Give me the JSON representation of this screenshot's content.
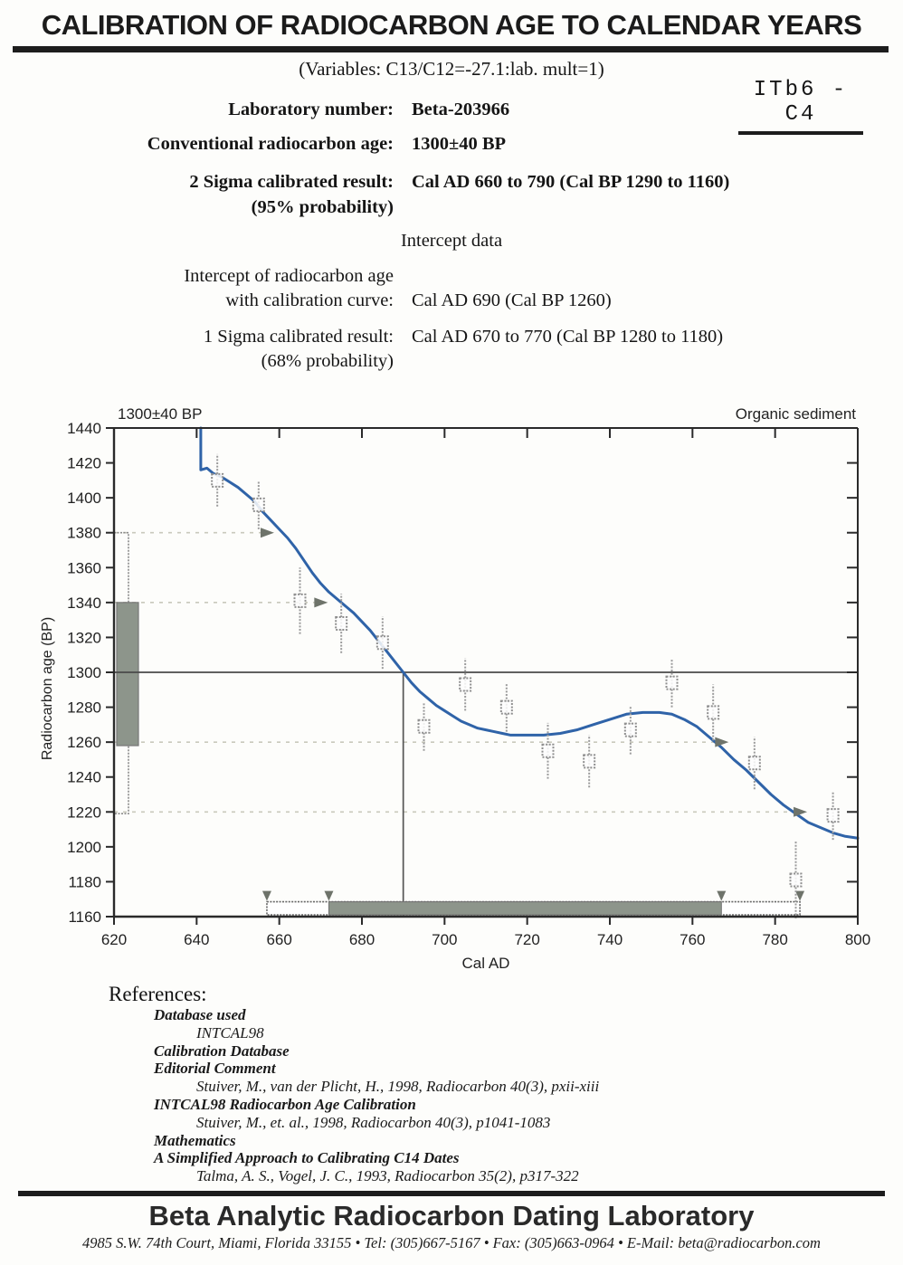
{
  "title": "CALIBRATION OF RADIOCARBON AGE TO CALENDAR YEARS",
  "variables_line": "(Variables:  C13/C12=-27.1:lab. mult=1)",
  "sample_code": "ITb6 - C4",
  "fields": [
    {
      "label": "Laboratory number:",
      "value": "Beta-203966"
    },
    {
      "label": "Conventional radiocarbon age:",
      "value": "1300±40 BP"
    },
    {
      "label": "2 Sigma calibrated result:",
      "sublabel": "(95% probability)",
      "value": "Cal AD 660 to 790 (Cal BP 1290 to 1160)"
    }
  ],
  "intercept_section": {
    "heading": "Intercept data",
    "intercept_label_line1": "Intercept of radiocarbon age",
    "intercept_label_line2": "with calibration curve:",
    "intercept_value": "Cal AD 690 (Cal BP 1260)",
    "one_sigma_label": "1 Sigma calibrated result:",
    "one_sigma_sublabel": "(68% probability)",
    "one_sigma_value": "Cal AD 670 to 770 (Cal BP 1280 to 1180)"
  },
  "chart_data": {
    "type": "line",
    "title_left": "1300±40 BP",
    "title_right": "Organic sediment",
    "xlabel": "Cal AD",
    "ylabel": "Radiocarbon age (BP)",
    "xlim": [
      620,
      800
    ],
    "ylim": [
      1160,
      1440
    ],
    "x_ticks": [
      620,
      640,
      660,
      680,
      700,
      720,
      740,
      760,
      780,
      800
    ],
    "y_ticks": [
      1160,
      1180,
      1200,
      1220,
      1240,
      1260,
      1280,
      1300,
      1320,
      1340,
      1360,
      1380,
      1400,
      1420,
      1440
    ],
    "radiocarbon_age_line": 1300,
    "intercept_x": 690,
    "sigma_guides": [
      {
        "y": 1380,
        "x_to": 656
      },
      {
        "y": 1340,
        "x_to": 669
      },
      {
        "y": 1260,
        "x_to": 766
      },
      {
        "y": 1220,
        "x_to": 785
      }
    ],
    "curve_arrows": [
      [
        657,
        1380
      ],
      [
        670,
        1340
      ],
      [
        767,
        1260
      ],
      [
        786,
        1220
      ]
    ],
    "calibration_curve": [
      [
        641,
        1440
      ],
      [
        641,
        1416
      ],
      [
        642.5,
        1417
      ],
      [
        644,
        1414
      ],
      [
        646,
        1412
      ],
      [
        648,
        1409
      ],
      [
        650,
        1406
      ],
      [
        652,
        1402
      ],
      [
        654,
        1398
      ],
      [
        656,
        1392
      ],
      [
        658,
        1387
      ],
      [
        660,
        1382
      ],
      [
        662,
        1377
      ],
      [
        664,
        1371
      ],
      [
        666,
        1364
      ],
      [
        668,
        1357
      ],
      [
        670,
        1351
      ],
      [
        672,
        1346
      ],
      [
        674,
        1342
      ],
      [
        676,
        1338
      ],
      [
        678,
        1334
      ],
      [
        680,
        1329
      ],
      [
        682,
        1324
      ],
      [
        684,
        1318
      ],
      [
        686,
        1312
      ],
      [
        688,
        1306
      ],
      [
        690,
        1300
      ],
      [
        692,
        1294
      ],
      [
        694,
        1289
      ],
      [
        696,
        1285
      ],
      [
        698,
        1281
      ],
      [
        700,
        1278
      ],
      [
        702,
        1275
      ],
      [
        704,
        1272
      ],
      [
        706,
        1270
      ],
      [
        708,
        1268
      ],
      [
        710,
        1267
      ],
      [
        712,
        1266
      ],
      [
        714,
        1265
      ],
      [
        716,
        1264
      ],
      [
        720,
        1264
      ],
      [
        724,
        1264
      ],
      [
        728,
        1265
      ],
      [
        732,
        1267
      ],
      [
        736,
        1270
      ],
      [
        740,
        1273
      ],
      [
        744,
        1276
      ],
      [
        748,
        1277
      ],
      [
        752,
        1277
      ],
      [
        755,
        1276
      ],
      [
        758,
        1273
      ],
      [
        761,
        1269
      ],
      [
        764,
        1263
      ],
      [
        767,
        1257
      ],
      [
        770,
        1250
      ],
      [
        773,
        1244
      ],
      [
        776,
        1237
      ],
      [
        779,
        1230
      ],
      [
        782,
        1224
      ],
      [
        785,
        1219
      ],
      [
        788,
        1214
      ],
      [
        791,
        1211
      ],
      [
        794,
        1208
      ],
      [
        797,
        1206
      ],
      [
        800,
        1205
      ]
    ],
    "measurements": [
      [
        645,
        1410,
        15
      ],
      [
        655,
        1396,
        14
      ],
      [
        665,
        1341,
        19
      ],
      [
        675,
        1328,
        17
      ],
      [
        685,
        1317,
        15
      ],
      [
        695,
        1269,
        14
      ],
      [
        705,
        1293,
        15
      ],
      [
        715,
        1280,
        14
      ],
      [
        725,
        1255,
        16
      ],
      [
        735,
        1249,
        15
      ],
      [
        745,
        1267,
        14
      ],
      [
        755,
        1294,
        14
      ],
      [
        765,
        1277,
        16
      ],
      [
        775,
        1248,
        15
      ],
      [
        785,
        1181,
        22
      ],
      [
        794,
        1218,
        14
      ]
    ],
    "age_distribution": {
      "one_sigma": {
        "lo": 1258,
        "hi": 1340
      },
      "two_sigma": {
        "lo": 1219,
        "hi": 1380
      }
    },
    "calibrated_range_bar": {
      "two_sigma_x": [
        657,
        786
      ],
      "one_sigma_x": [
        672,
        767
      ],
      "arrow_xs": [
        657,
        672,
        767,
        786
      ],
      "bar_y": [
        1161,
        1168.5
      ]
    }
  },
  "references": {
    "heading": "References:",
    "entries": [
      {
        "style": "heading",
        "text": "Database used"
      },
      {
        "style": "citation",
        "text": "INTCAL98"
      },
      {
        "style": "heading",
        "text": "Calibration Database"
      },
      {
        "style": "heading",
        "text": "Editorial Comment"
      },
      {
        "style": "citation",
        "text": "Stuiver, M., van der Plicht, H., 1998, Radiocarbon 40(3), pxii-xiii"
      },
      {
        "style": "heading",
        "text": "INTCAL98 Radiocarbon Age Calibration"
      },
      {
        "style": "citation",
        "text": "Stuiver, M., et. al., 1998, Radiocarbon 40(3), p1041-1083"
      },
      {
        "style": "heading",
        "text": "Mathematics"
      },
      {
        "style": "heading",
        "text": "A Simplified Approach to Calibrating C14 Dates"
      },
      {
        "style": "citation",
        "text": "Talma, A. S., Vogel, J. C., 1993, Radiocarbon 35(2), p317-322"
      }
    ]
  },
  "footer": {
    "lab_name": "Beta Analytic Radiocarbon Dating Laboratory",
    "address": "4985 S.W. 74th Court, Miami, Florida 33155 • Tel: (305)667-5167 • Fax: (305)663-0964 • E-Mail: beta@radiocarbon.com"
  },
  "colors": {
    "curve_blue": "#2f63a8",
    "measurement_gray": "#9c9c9c",
    "distribution_fill": "#8d958b",
    "arrow_fill": "#6e736a",
    "guide_dash": "#c9c9bc",
    "line_dark": "#4a4a4a",
    "axis": "#2a2a2a"
  }
}
